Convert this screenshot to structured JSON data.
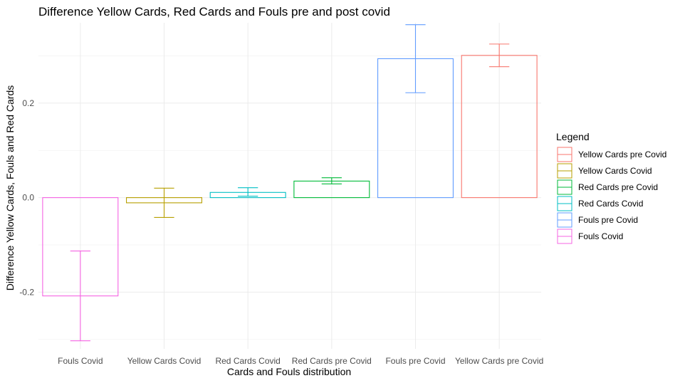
{
  "chart_data": {
    "type": "bar",
    "title": "Difference Yellow Cards, Red Cards and Fouls pre and post covid",
    "xlabel": "Cards and Fouls distribution",
    "ylabel": "Difference Yellow Cards, Fouls and Red Cards",
    "ylim": [
      -0.32,
      0.37
    ],
    "yticks": [
      -0.2,
      0.0,
      0.2
    ],
    "ytick_labels": [
      "-0.2",
      "0.0",
      "0.2"
    ],
    "grid": true,
    "legend_position": "right",
    "legend_title": "Legend",
    "legend": [
      {
        "label": "Yellow Cards pre Covid",
        "color": "#F8766D"
      },
      {
        "label": "Yellow Cards Covid",
        "color": "#B79F00"
      },
      {
        "label": "Red Cards pre Covid",
        "color": "#00BA38"
      },
      {
        "label": "Red Cards Covid",
        "color": "#00BFC4"
      },
      {
        "label": "Fouls pre Covid",
        "color": "#619CFF"
      },
      {
        "label": "Fouls Covid",
        "color": "#F564E3"
      }
    ],
    "categories": [
      "Fouls Covid",
      "Yellow Cards Covid",
      "Red Cards Covid",
      "Red Cards pre Covid",
      "Fouls pre Covid",
      "Yellow Cards pre Covid"
    ],
    "bars": [
      {
        "category": "Fouls Covid",
        "value": -0.208,
        "err_low": -0.303,
        "err_high": -0.113,
        "color": "#F564E3"
      },
      {
        "category": "Yellow Cards Covid",
        "value": -0.011,
        "err_low": -0.042,
        "err_high": 0.02,
        "color": "#B79F00"
      },
      {
        "category": "Red Cards Covid",
        "value": 0.011,
        "err_low": 0.003,
        "err_high": 0.021,
        "color": "#00BFC4"
      },
      {
        "category": "Red Cards pre Covid",
        "value": 0.035,
        "err_low": 0.029,
        "err_high": 0.042,
        "color": "#00BA38"
      },
      {
        "category": "Fouls pre Covid",
        "value": 0.294,
        "err_low": 0.222,
        "err_high": 0.366,
        "color": "#619CFF"
      },
      {
        "category": "Yellow Cards pre Covid",
        "value": 0.301,
        "err_low": 0.277,
        "err_high": 0.325,
        "color": "#F8766D"
      }
    ]
  }
}
